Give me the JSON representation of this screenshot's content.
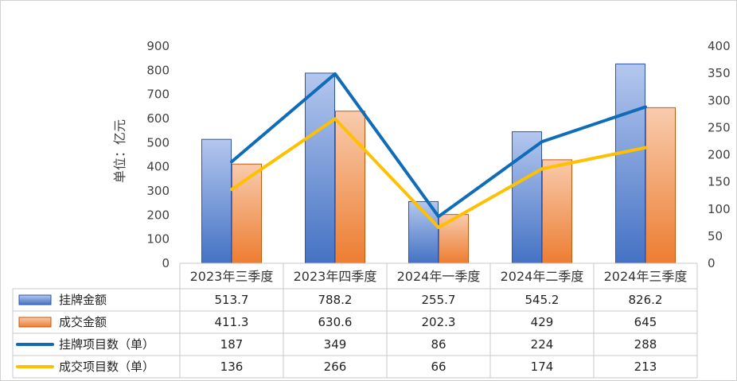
{
  "chart_data": {
    "type": "bar",
    "categories": [
      "2023年三季度",
      "2023年四季度",
      "2024年一季度",
      "2024年二季度",
      "2024年三季度"
    ],
    "ylabel": "单位：亿元",
    "ylim": [
      0,
      900
    ],
    "y2lim": [
      0,
      400
    ],
    "y_ticks": [
      "0",
      "100",
      "200",
      "300",
      "400",
      "500",
      "600",
      "700",
      "800",
      "900"
    ],
    "y2_ticks": [
      "0",
      "50",
      "100",
      "150",
      "200",
      "250",
      "300",
      "350",
      "400"
    ],
    "grid": false,
    "legend": "data-table-left",
    "series": [
      {
        "name": "挂牌金额",
        "type": "bar",
        "axis": "left",
        "color": "#4472C4",
        "values": [
          513.7,
          788.2,
          255.7,
          545.2,
          826.2
        ],
        "labels": [
          "513.7",
          "788.2",
          "255.7",
          "545.2",
          "826.2"
        ]
      },
      {
        "name": "成交金额",
        "type": "bar",
        "axis": "left",
        "color": "#ED7D31",
        "values": [
          411.3,
          630.6,
          202.3,
          429,
          645
        ],
        "labels": [
          "411.3",
          "630.6",
          "202.3",
          "429",
          "645"
        ]
      },
      {
        "name": "挂牌项目数（单）",
        "type": "line",
        "axis": "right",
        "color": "#0F6CB8",
        "values": [
          187,
          349,
          86,
          224,
          288
        ],
        "labels": [
          "187",
          "349",
          "86",
          "224",
          "288"
        ]
      },
      {
        "name": "成交项目数（单）",
        "type": "line",
        "axis": "right",
        "color": "#FFC000",
        "values": [
          136,
          266,
          66,
          174,
          213
        ],
        "labels": [
          "136",
          "266",
          "66",
          "174",
          "213"
        ]
      }
    ]
  }
}
